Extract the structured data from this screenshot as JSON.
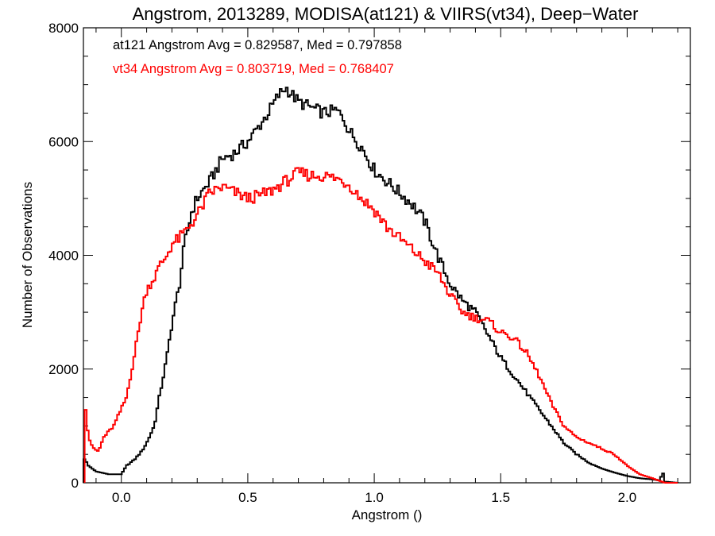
{
  "chart_data": {
    "type": "line",
    "title": "Angstrom, 2013289, MODISA(at121) & VIIRS(vt34), Deep−Water",
    "xlabel": "Angstrom ()",
    "ylabel": "Number of Observations",
    "xlim": [
      -0.15,
      2.25
    ],
    "ylim": [
      0,
      8000
    ],
    "xticks": [
      0.0,
      0.5,
      1.0,
      1.5,
      2.0
    ],
    "xtick_labels": [
      "0.0",
      "0.5",
      "1.0",
      "1.5",
      "2.0"
    ],
    "yticks": [
      0,
      2000,
      4000,
      6000,
      8000
    ],
    "ytick_labels": [
      "0",
      "2000",
      "4000",
      "6000",
      "8000"
    ],
    "grid": false,
    "annotations": [
      {
        "text": "at121 Angstrom Avg = 0.829587, Med = 0.797858",
        "color": "#000000"
      },
      {
        "text": "vt34 Angstrom Avg = 0.803719, Med = 0.768407",
        "color": "#ff0000"
      }
    ],
    "series": [
      {
        "color": "#000000",
        "style": "step",
        "points": [
          [
            -0.15,
            0
          ],
          [
            -0.15,
            450
          ],
          [
            -0.13,
            300
          ],
          [
            -0.1,
            200
          ],
          [
            -0.05,
            150
          ],
          [
            0.0,
            150
          ],
          [
            0.02,
            300
          ],
          [
            0.05,
            400
          ],
          [
            0.08,
            550
          ],
          [
            0.1,
            700
          ],
          [
            0.13,
            1000
          ],
          [
            0.15,
            1500
          ],
          [
            0.18,
            2200
          ],
          [
            0.2,
            2800
          ],
          [
            0.23,
            3500
          ],
          [
            0.25,
            4200
          ],
          [
            0.28,
            4800
          ],
          [
            0.3,
            5000
          ],
          [
            0.35,
            5300
          ],
          [
            0.4,
            5700
          ],
          [
            0.45,
            5800
          ],
          [
            0.5,
            6000
          ],
          [
            0.55,
            6300
          ],
          [
            0.58,
            6500
          ],
          [
            0.62,
            6800
          ],
          [
            0.65,
            6950
          ],
          [
            0.7,
            6700
          ],
          [
            0.75,
            6600
          ],
          [
            0.8,
            6500
          ],
          [
            0.85,
            6550
          ],
          [
            0.88,
            6400
          ],
          [
            0.9,
            6200
          ],
          [
            0.95,
            5900
          ],
          [
            1.0,
            5500
          ],
          [
            1.05,
            5300
          ],
          [
            1.1,
            5100
          ],
          [
            1.15,
            4900
          ],
          [
            1.2,
            4600
          ],
          [
            1.25,
            4000
          ],
          [
            1.3,
            3500
          ],
          [
            1.35,
            3200
          ],
          [
            1.4,
            3000
          ],
          [
            1.45,
            2600
          ],
          [
            1.5,
            2200
          ],
          [
            1.55,
            1900
          ],
          [
            1.6,
            1600
          ],
          [
            1.65,
            1300
          ],
          [
            1.7,
            1000
          ],
          [
            1.75,
            700
          ],
          [
            1.8,
            500
          ],
          [
            1.85,
            350
          ],
          [
            1.9,
            250
          ],
          [
            1.95,
            180
          ],
          [
            2.0,
            120
          ],
          [
            2.05,
            80
          ],
          [
            2.1,
            60
          ],
          [
            2.13,
            40
          ],
          [
            2.14,
            200
          ],
          [
            2.15,
            20
          ],
          [
            2.2,
            0
          ]
        ]
      },
      {
        "color": "#ff0000",
        "style": "step",
        "points": [
          [
            -0.145,
            0
          ],
          [
            -0.145,
            1500
          ],
          [
            -0.13,
            800
          ],
          [
            -0.11,
            600
          ],
          [
            -0.09,
            550
          ],
          [
            -0.07,
            800
          ],
          [
            -0.05,
            900
          ],
          [
            -0.03,
            1000
          ],
          [
            0.0,
            1300
          ],
          [
            0.02,
            1500
          ],
          [
            0.05,
            2200
          ],
          [
            0.08,
            3000
          ],
          [
            0.1,
            3400
          ],
          [
            0.13,
            3600
          ],
          [
            0.15,
            3800
          ],
          [
            0.18,
            4000
          ],
          [
            0.2,
            4200
          ],
          [
            0.23,
            4300
          ],
          [
            0.25,
            4400
          ],
          [
            0.3,
            4700
          ],
          [
            0.35,
            5100
          ],
          [
            0.4,
            5200
          ],
          [
            0.45,
            5100
          ],
          [
            0.5,
            5000
          ],
          [
            0.55,
            5050
          ],
          [
            0.6,
            5150
          ],
          [
            0.65,
            5300
          ],
          [
            0.7,
            5450
          ],
          [
            0.75,
            5400
          ],
          [
            0.8,
            5400
          ],
          [
            0.85,
            5350
          ],
          [
            0.9,
            5250
          ],
          [
            0.95,
            5000
          ],
          [
            1.0,
            4800
          ],
          [
            1.05,
            4500
          ],
          [
            1.1,
            4300
          ],
          [
            1.15,
            4100
          ],
          [
            1.2,
            3900
          ],
          [
            1.25,
            3700
          ],
          [
            1.3,
            3300
          ],
          [
            1.35,
            3000
          ],
          [
            1.4,
            2900
          ],
          [
            1.45,
            2850
          ],
          [
            1.5,
            2650
          ],
          [
            1.55,
            2550
          ],
          [
            1.6,
            2300
          ],
          [
            1.65,
            1900
          ],
          [
            1.7,
            1400
          ],
          [
            1.75,
            1000
          ],
          [
            1.8,
            800
          ],
          [
            1.85,
            700
          ],
          [
            1.9,
            600
          ],
          [
            1.95,
            500
          ],
          [
            2.0,
            300
          ],
          [
            2.05,
            150
          ],
          [
            2.1,
            80
          ],
          [
            2.15,
            0
          ],
          [
            2.2,
            0
          ]
        ]
      }
    ]
  }
}
